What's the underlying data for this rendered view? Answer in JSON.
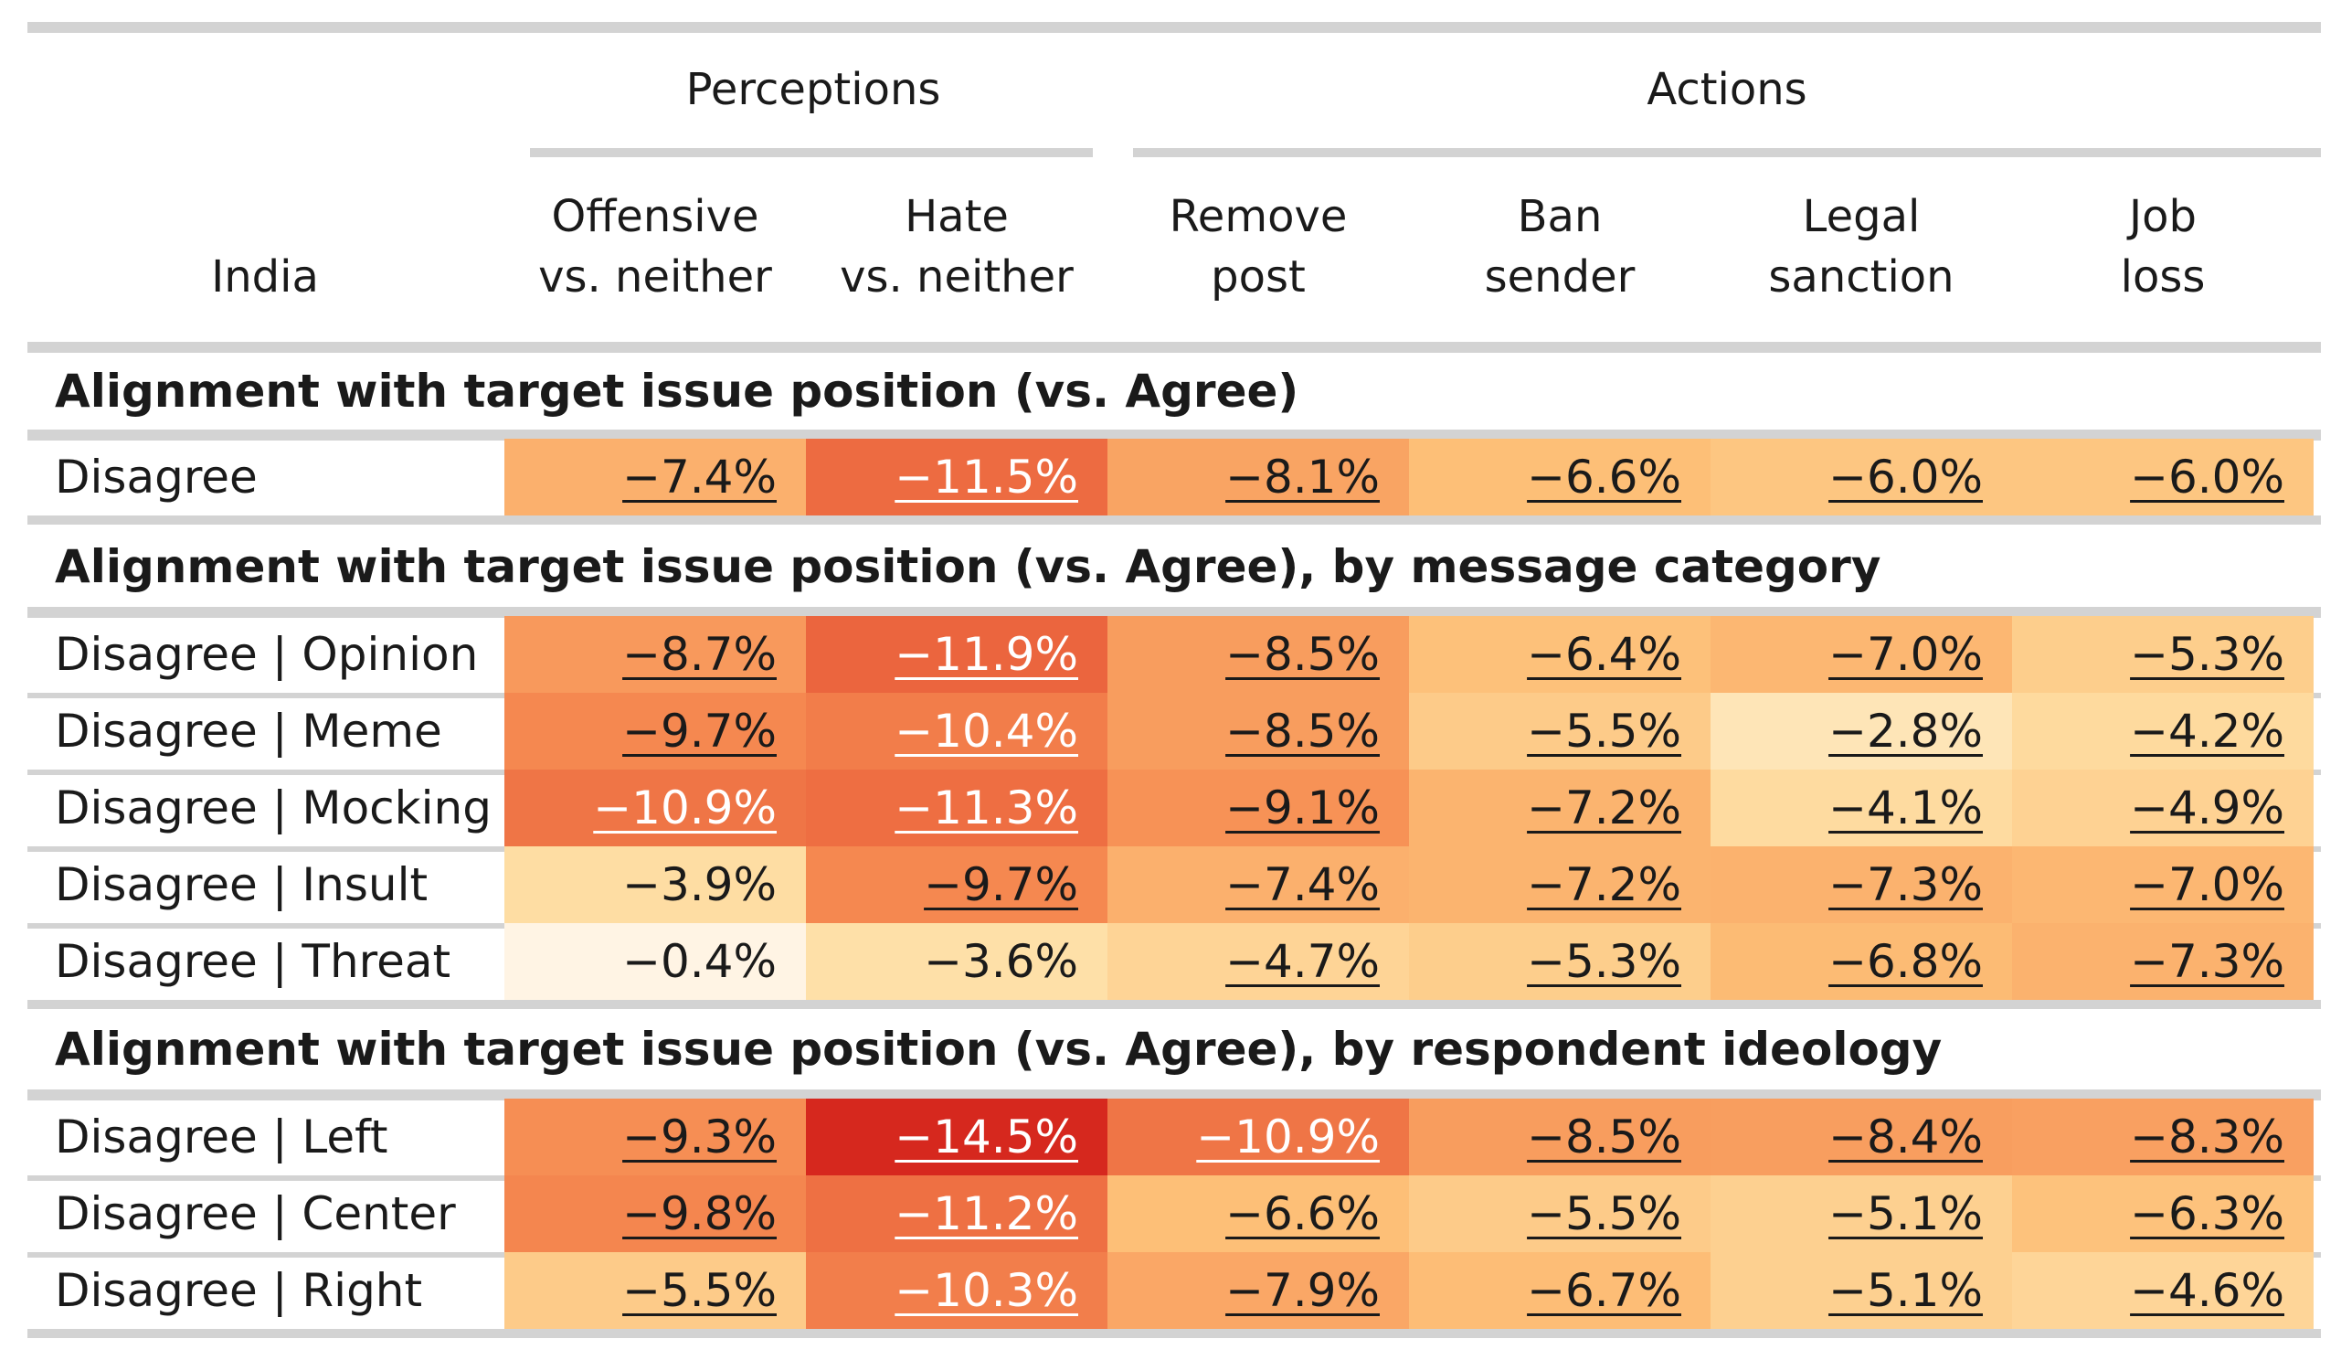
{
  "corner_label": "India",
  "groups": [
    {
      "label": "Perceptions"
    },
    {
      "label": "Actions"
    }
  ],
  "columns": [
    {
      "line1": "Offensive",
      "line2": "vs. neither"
    },
    {
      "line1": "Hate",
      "line2": "vs. neither"
    },
    {
      "line1": "Remove",
      "line2": "post"
    },
    {
      "line1": "Ban",
      "line2": "sender"
    },
    {
      "line1": "Legal",
      "line2": "sanction"
    },
    {
      "line1": "Job",
      "line2": "loss"
    }
  ],
  "sections": [
    {
      "title": "Alignment with target issue position (vs. Agree)",
      "rows": [
        {
          "label": "Disagree",
          "values": [
            -7.4,
            -11.5,
            -8.1,
            -6.6,
            -6.0,
            -6.0
          ],
          "display": [
            "−7.4%",
            "−11.5%",
            "−8.1%",
            "−6.6%",
            "−6.0%",
            "−6.0%"
          ],
          "significant": [
            true,
            true,
            true,
            true,
            true,
            true
          ]
        }
      ]
    },
    {
      "title": "Alignment with target issue position (vs. Agree), by message category",
      "rows": [
        {
          "label": "Disagree | Opinion",
          "values": [
            -8.7,
            -11.9,
            -8.5,
            -6.4,
            -7.0,
            -5.3
          ],
          "display": [
            "−8.7%",
            "−11.9%",
            "−8.5%",
            "−6.4%",
            "−7.0%",
            "−5.3%"
          ],
          "significant": [
            true,
            true,
            true,
            true,
            true,
            true
          ]
        },
        {
          "label": "Disagree | Meme",
          "values": [
            -9.7,
            -10.4,
            -8.5,
            -5.5,
            -2.8,
            -4.2
          ],
          "display": [
            "−9.7%",
            "−10.4%",
            "−8.5%",
            "−5.5%",
            "−2.8%",
            "−4.2%"
          ],
          "significant": [
            true,
            true,
            true,
            true,
            true,
            true
          ]
        },
        {
          "label": "Disagree | Mocking",
          "values": [
            -10.9,
            -11.3,
            -9.1,
            -7.2,
            -4.1,
            -4.9
          ],
          "display": [
            "−10.9%",
            "−11.3%",
            "−9.1%",
            "−7.2%",
            "−4.1%",
            "−4.9%"
          ],
          "significant": [
            true,
            true,
            true,
            true,
            true,
            true
          ]
        },
        {
          "label": "Disagree | Insult",
          "values": [
            -3.9,
            -9.7,
            -7.4,
            -7.2,
            -7.3,
            -7.0
          ],
          "display": [
            "−3.9%",
            "−9.7%",
            "−7.4%",
            "−7.2%",
            "−7.3%",
            "−7.0%"
          ],
          "significant": [
            false,
            true,
            true,
            true,
            true,
            true
          ]
        },
        {
          "label": "Disagree | Threat",
          "values": [
            -0.4,
            -3.6,
            -4.7,
            -5.3,
            -6.8,
            -7.3
          ],
          "display": [
            "−0.4%",
            "−3.6%",
            "−4.7%",
            "−5.3%",
            "−6.8%",
            "−7.3%"
          ],
          "significant": [
            false,
            false,
            true,
            true,
            true,
            true
          ]
        }
      ]
    },
    {
      "title": "Alignment with target issue position (vs. Agree), by respondent ideology",
      "rows": [
        {
          "label": "Disagree | Left",
          "values": [
            -9.3,
            -14.5,
            -10.9,
            -8.5,
            -8.4,
            -8.3
          ],
          "display": [
            "−9.3%",
            "−14.5%",
            "−10.9%",
            "−8.5%",
            "−8.4%",
            "−8.3%"
          ],
          "significant": [
            true,
            true,
            true,
            true,
            true,
            true
          ]
        },
        {
          "label": "Disagree | Center",
          "values": [
            -9.8,
            -11.2,
            -6.6,
            -5.5,
            -5.1,
            -6.3
          ],
          "display": [
            "−9.8%",
            "−11.2%",
            "−6.6%",
            "−5.5%",
            "−5.1%",
            "−6.3%"
          ],
          "significant": [
            true,
            true,
            true,
            true,
            true,
            true
          ]
        },
        {
          "label": "Disagree | Right",
          "values": [
            -5.5,
            -10.3,
            -7.9,
            -6.7,
            -5.1,
            -4.6
          ],
          "display": [
            "−5.5%",
            "−10.3%",
            "−7.9%",
            "−6.7%",
            "−5.1%",
            "−4.6%"
          ],
          "significant": [
            true,
            true,
            true,
            true,
            true,
            true
          ]
        }
      ]
    }
  ],
  "chart_data": {
    "type": "heatmap",
    "title": "",
    "row_header": "India",
    "column_groups": [
      {
        "name": "Perceptions",
        "columns": [
          "Offensive vs. neither",
          "Hate vs. neither"
        ]
      },
      {
        "name": "Actions",
        "columns": [
          "Remove post",
          "Ban sender",
          "Legal sanction",
          "Job loss"
        ]
      }
    ],
    "columns": [
      "Offensive vs. neither",
      "Hate vs. neither",
      "Remove post",
      "Ban sender",
      "Legal sanction",
      "Job loss"
    ],
    "rows": [
      {
        "section": "Alignment with target issue position (vs. Agree)",
        "label": "Disagree",
        "values": [
          -7.4,
          -11.5,
          -8.1,
          -6.6,
          -6.0,
          -6.0
        ]
      },
      {
        "section": "Alignment with target issue position (vs. Agree), by message category",
        "label": "Disagree | Opinion",
        "values": [
          -8.7,
          -11.9,
          -8.5,
          -6.4,
          -7.0,
          -5.3
        ]
      },
      {
        "section": "Alignment with target issue position (vs. Agree), by message category",
        "label": "Disagree | Meme",
        "values": [
          -9.7,
          -10.4,
          -8.5,
          -5.5,
          -2.8,
          -4.2
        ]
      },
      {
        "section": "Alignment with target issue position (vs. Agree), by message category",
        "label": "Disagree | Mocking",
        "values": [
          -10.9,
          -11.3,
          -9.1,
          -7.2,
          -4.1,
          -4.9
        ]
      },
      {
        "section": "Alignment with target issue position (vs. Agree), by message category",
        "label": "Disagree | Insult",
        "values": [
          -3.9,
          -9.7,
          -7.4,
          -7.2,
          -7.3,
          -7.0
        ]
      },
      {
        "section": "Alignment with target issue position (vs. Agree), by message category",
        "label": "Disagree | Threat",
        "values": [
          -0.4,
          -3.6,
          -4.7,
          -5.3,
          -6.8,
          -7.3
        ]
      },
      {
        "section": "Alignment with target issue position (vs. Agree), by respondent ideology",
        "label": "Disagree | Left",
        "values": [
          -9.3,
          -14.5,
          -10.9,
          -8.5,
          -8.4,
          -8.3
        ]
      },
      {
        "section": "Alignment with target issue position (vs. Agree), by respondent ideology",
        "label": "Disagree | Center",
        "values": [
          -9.8,
          -11.2,
          -6.6,
          -5.5,
          -5.1,
          -6.3
        ]
      },
      {
        "section": "Alignment with target issue position (vs. Agree), by respondent ideology",
        "label": "Disagree | Right",
        "values": [
          -5.5,
          -10.3,
          -7.9,
          -6.7,
          -5.1,
          -4.6
        ]
      }
    ],
    "unit": "%",
    "color_scale": {
      "low_color": "#d7301f",
      "mid_color": "#fdbb84",
      "high_color": "#fff7ec",
      "min": -14.5,
      "max": 0
    },
    "underline_meaning_shown": false
  }
}
